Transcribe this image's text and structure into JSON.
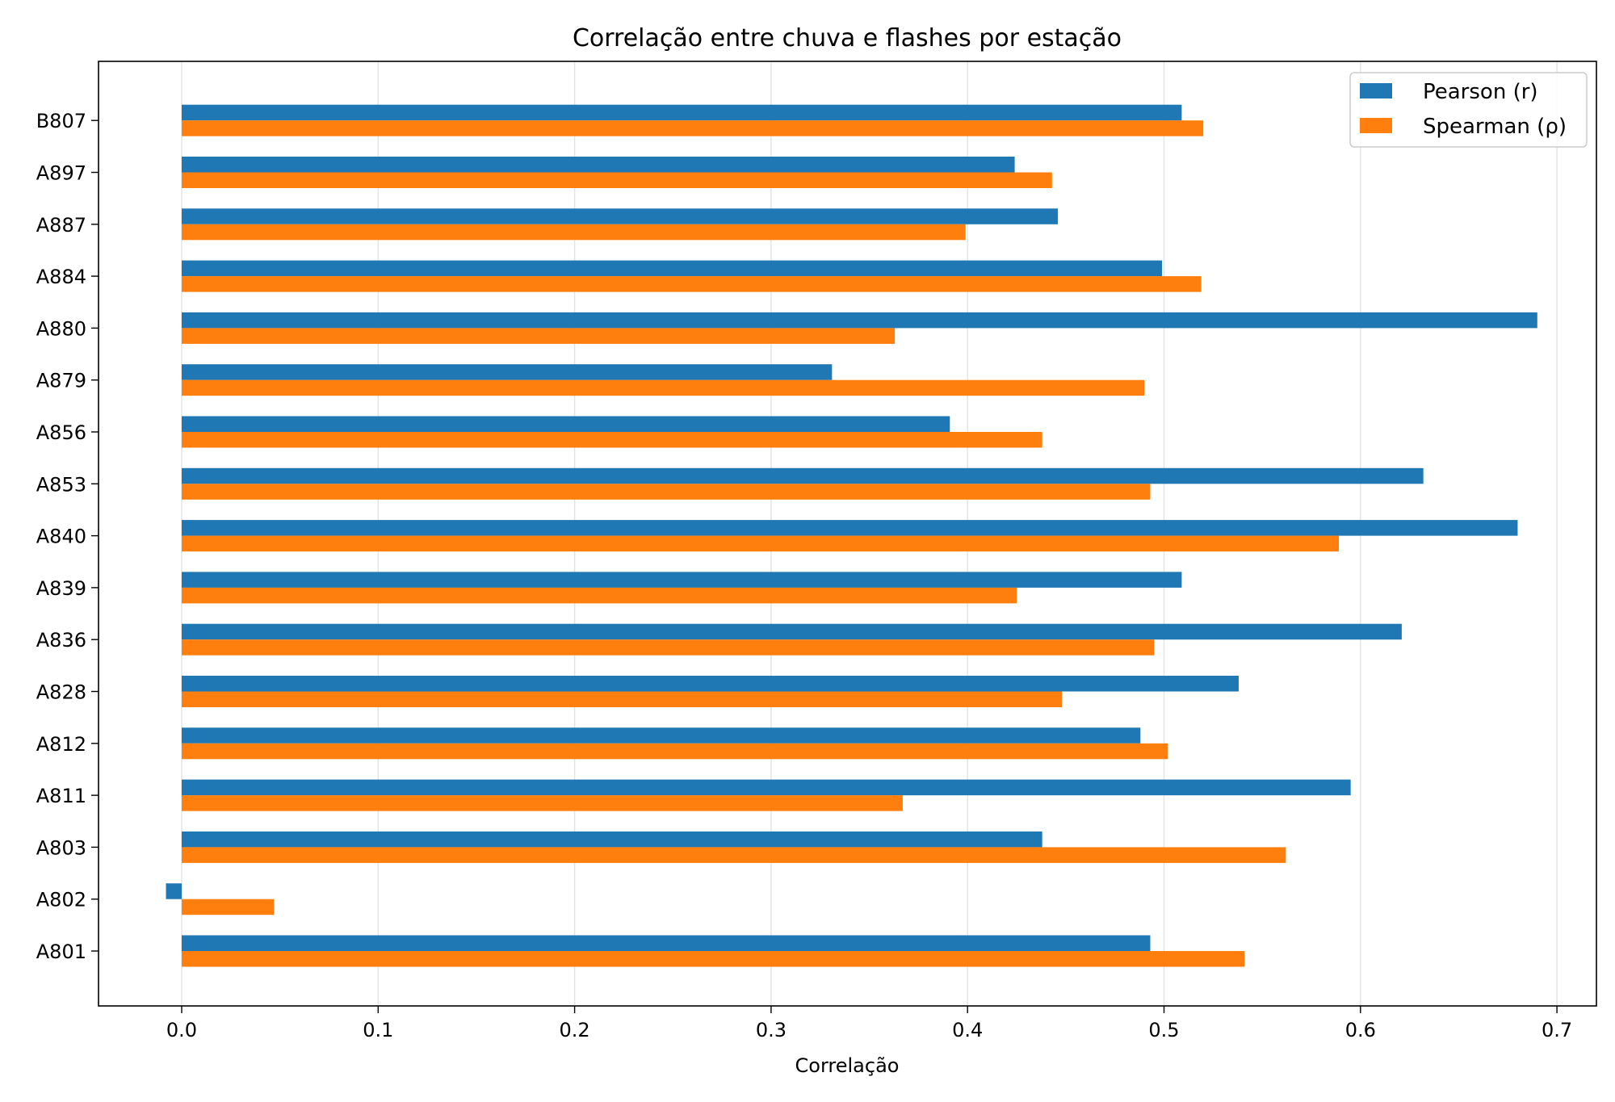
{
  "chart_data": {
    "type": "bar",
    "orientation": "horizontal",
    "title": "Correlação entre chuva e flashes por estação",
    "xlabel": "Correlação",
    "ylabel": "",
    "xlim": [
      -0.042,
      0.725
    ],
    "xticks": [
      0.0,
      0.1,
      0.2,
      0.3,
      0.4,
      0.5,
      0.6,
      0.7
    ],
    "xtick_labels": [
      "0.0",
      "0.1",
      "0.2",
      "0.3",
      "0.4",
      "0.5",
      "0.6",
      "0.7"
    ],
    "grid": "x",
    "legend_position": "top-right",
    "categories": [
      "A801",
      "A802",
      "A803",
      "A811",
      "A812",
      "A828",
      "A836",
      "A839",
      "A840",
      "A853",
      "A856",
      "A879",
      "A880",
      "A884",
      "A887",
      "A897",
      "B807"
    ],
    "series": [
      {
        "name": "Pearson (r)",
        "color": "#1f77b4",
        "values": [
          0.493,
          -0.008,
          0.438,
          0.595,
          0.488,
          0.538,
          0.621,
          0.509,
          0.68,
          0.632,
          0.391,
          0.331,
          0.69,
          0.499,
          0.446,
          0.424,
          0.509
        ]
      },
      {
        "name": "Spearman (ρ)",
        "color": "#ff7f0e",
        "values": [
          0.541,
          0.047,
          0.562,
          0.367,
          0.502,
          0.448,
          0.495,
          0.425,
          0.589,
          0.493,
          0.438,
          0.49,
          0.363,
          0.519,
          0.399,
          0.443,
          0.52
        ]
      }
    ]
  }
}
